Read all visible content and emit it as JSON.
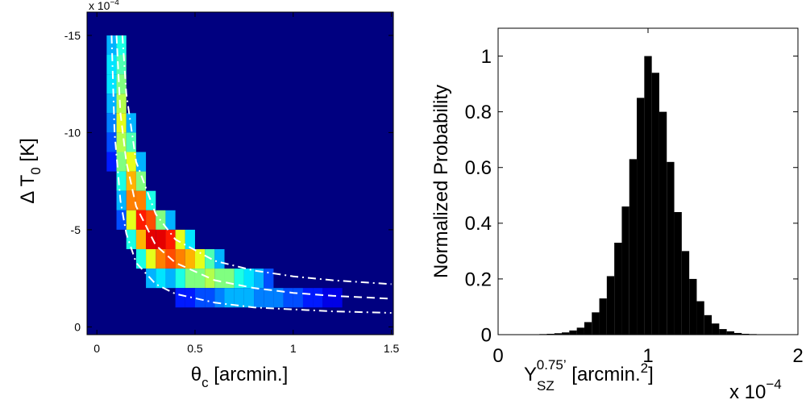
{
  "chart_data": [
    {
      "type": "heatmap",
      "xlabel": {
        "symbol": "θ",
        "sub": "c",
        "unit": " [arcmin.]"
      },
      "ylabel": {
        "symbol": "Δ T",
        "sub": "0",
        "unit": " [K]"
      },
      "y_multiplier": {
        "base": "x 10",
        "exp": "−4"
      },
      "xlim": [
        -0.05,
        1.51
      ],
      "ylim": [
        0.4,
        -16.2
      ],
      "xticks": [
        0,
        0.5,
        1,
        1.5
      ],
      "yticks": [
        0,
        -5,
        -10,
        -15
      ],
      "bin_size": [
        0.05,
        1
      ],
      "columns": [
        {
          "x": 0.075,
          "y": [
            -14.5,
            -13.5,
            -12.5,
            -11.5,
            -10.5,
            -9.5,
            -8.5
          ],
          "values": [
            0.3,
            0.35,
            0.35,
            0.3,
            0.25,
            0.2,
            0.15
          ]
        },
        {
          "x": 0.125,
          "y": [
            -14.5,
            -13.5,
            -12.5,
            -11.5,
            -10.5,
            -9.5,
            -8.5,
            -7.5,
            -6.5,
            -5.5
          ],
          "values": [
            0.4,
            0.45,
            0.5,
            0.55,
            0.6,
            0.55,
            0.5,
            0.4,
            0.3,
            0.2
          ]
        },
        {
          "x": 0.175,
          "y": [
            -10.5,
            -9.5,
            -8.5,
            -7.5,
            -6.5,
            -5.5,
            -4.5
          ],
          "values": [
            0.3,
            0.45,
            0.6,
            0.7,
            0.75,
            0.6,
            0.4
          ]
        },
        {
          "x": 0.225,
          "y": [
            -8.5,
            -7.5,
            -6.5,
            -5.5,
            -4.5,
            -3.5
          ],
          "values": [
            0.3,
            0.5,
            0.75,
            0.85,
            0.7,
            0.4
          ]
        },
        {
          "x": 0.275,
          "y": [
            -6.5,
            -5.5,
            -4.5,
            -3.5,
            -2.5
          ],
          "values": [
            0.4,
            0.8,
            0.9,
            0.6,
            0.3
          ]
        },
        {
          "x": 0.325,
          "y": [
            -5.5,
            -4.5,
            -3.5,
            -2.5
          ],
          "values": [
            0.5,
            0.9,
            0.75,
            0.35
          ]
        },
        {
          "x": 0.375,
          "y": [
            -5.5,
            -4.5,
            -3.5,
            -2.5
          ],
          "values": [
            0.3,
            0.85,
            0.8,
            0.3
          ]
        },
        {
          "x": 0.425,
          "y": [
            -4.5,
            -3.5,
            -2.5,
            -1.5
          ],
          "values": [
            0.6,
            0.75,
            0.4,
            0.15
          ]
        },
        {
          "x": 0.475,
          "y": [
            -4.5,
            -3.5,
            -2.5,
            -1.5
          ],
          "values": [
            0.35,
            0.7,
            0.5,
            0.15
          ]
        },
        {
          "x": 0.525,
          "y": [
            -3.5,
            -2.5,
            -1.5
          ],
          "values": [
            0.6,
            0.5,
            0.2
          ]
        },
        {
          "x": 0.575,
          "y": [
            -3.5,
            -2.5,
            -1.5
          ],
          "values": [
            0.45,
            0.55,
            0.2
          ]
        },
        {
          "x": 0.625,
          "y": [
            -3.5,
            -2.5,
            -1.5
          ],
          "values": [
            0.3,
            0.5,
            0.25
          ]
        },
        {
          "x": 0.675,
          "y": [
            -2.5,
            -1.5
          ],
          "values": [
            0.5,
            0.3
          ]
        },
        {
          "x": 0.725,
          "y": [
            -2.5,
            -1.5
          ],
          "values": [
            0.4,
            0.3
          ]
        },
        {
          "x": 0.775,
          "y": [
            -2.5,
            -1.5
          ],
          "values": [
            0.35,
            0.3
          ]
        },
        {
          "x": 0.825,
          "y": [
            -2.5,
            -1.5
          ],
          "values": [
            0.3,
            0.25
          ]
        },
        {
          "x": 0.875,
          "y": [
            -2.5,
            -1.5
          ],
          "values": [
            0.2,
            0.25
          ]
        },
        {
          "x": 0.925,
          "y": [
            -1.5
          ],
          "values": [
            0.25
          ]
        },
        {
          "x": 0.975,
          "y": [
            -1.5
          ],
          "values": [
            0.2
          ]
        },
        {
          "x": 1.025,
          "y": [
            -1.5
          ],
          "values": [
            0.2
          ]
        },
        {
          "x": 1.075,
          "y": [
            -1.5
          ],
          "values": [
            0.15
          ]
        },
        {
          "x": 1.125,
          "y": [
            -1.5
          ],
          "values": [
            0.15
          ]
        },
        {
          "x": 1.175,
          "y": [
            -1.5
          ],
          "values": [
            0.1
          ]
        },
        {
          "x": 1.225,
          "y": [
            -1.5
          ],
          "values": [
            0.1
          ]
        }
      ],
      "lines": [
        {
          "style": "dashdot",
          "color": "#ffffff",
          "x": [
            0.13,
            0.15,
            0.2,
            0.3,
            0.4,
            0.6,
            0.8,
            1.0,
            1.2,
            1.5
          ],
          "values": [
            -15,
            -12,
            -8.5,
            -5.8,
            -4.5,
            -3.4,
            -2.9,
            -2.6,
            -2.4,
            -2.2
          ]
        },
        {
          "style": "dashed",
          "color": "#ffffff",
          "x": [
            0.1,
            0.12,
            0.15,
            0.2,
            0.3,
            0.4,
            0.6,
            0.8,
            1.0,
            1.2,
            1.5
          ],
          "values": [
            -15,
            -11,
            -8.5,
            -6.2,
            -4.2,
            -3.3,
            -2.4,
            -2.0,
            -1.75,
            -1.6,
            -1.45
          ]
        },
        {
          "style": "dashdot",
          "color": "#ffffff",
          "x": [
            0.075,
            0.09,
            0.12,
            0.15,
            0.2,
            0.3,
            0.4,
            0.6,
            0.8,
            1.0,
            1.2,
            1.5
          ],
          "values": [
            -15,
            -10,
            -6.5,
            -4.8,
            -3.3,
            -2.2,
            -1.7,
            -1.25,
            -1.0,
            -0.9,
            -0.8,
            -0.72
          ]
        }
      ]
    },
    {
      "type": "histogram",
      "ylabel": "Normalized Probability",
      "xlabel": {
        "symbol": "Y",
        "sub": "SZ",
        "sup": "0.75’",
        "unit": " [arcmin.",
        "unit_sup": "2",
        "unit_end": "]"
      },
      "x_multiplier": {
        "base": "x 10",
        "exp": "−4"
      },
      "color": "#000000",
      "xlim": [
        0,
        2
      ],
      "ylim": [
        0,
        1.1
      ],
      "xticks": [
        0,
        1,
        2
      ],
      "yticks": [
        0,
        0.2,
        0.4,
        0.6,
        0.8,
        1
      ],
      "bins": [
        0.275,
        0.325,
        0.375,
        0.425,
        0.475,
        0.525,
        0.575,
        0.625,
        0.675,
        0.725,
        0.775,
        0.825,
        0.875,
        0.925,
        0.975,
        1.025,
        1.075,
        1.125,
        1.175,
        1.225,
        1.275,
        1.325,
        1.375,
        1.425,
        1.475,
        1.525,
        1.575,
        1.625,
        1.675,
        1.725
      ],
      "values": [
        0.002,
        0.003,
        0.005,
        0.008,
        0.015,
        0.025,
        0.045,
        0.08,
        0.13,
        0.21,
        0.33,
        0.46,
        0.63,
        0.85,
        1.0,
        0.94,
        0.8,
        0.62,
        0.44,
        0.3,
        0.2,
        0.12,
        0.07,
        0.04,
        0.02,
        0.012,
        0.006,
        0.003,
        0.002
      ]
    }
  ]
}
